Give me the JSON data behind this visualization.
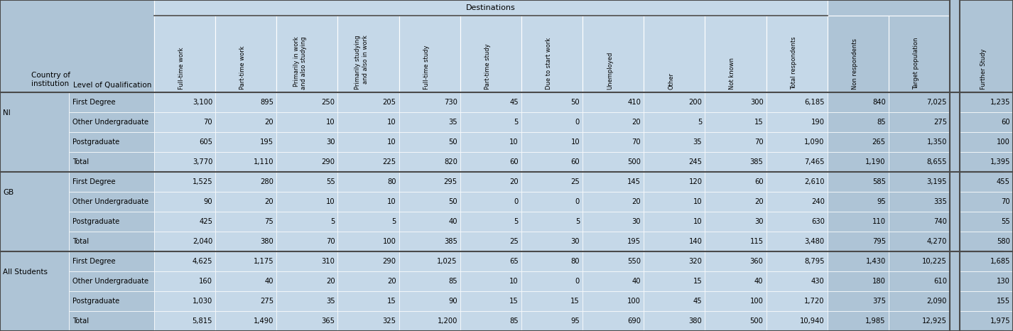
{
  "header_destinations": "Destinations",
  "col_headers": [
    "Full-time work",
    "Part-time work",
    "Primarily in work\nand also studying",
    "Primarily studying\nand also in work",
    "Full-time study",
    "Part-time study",
    "Due to start work",
    "Unemployed",
    "Other",
    "Not known",
    "Total respondents",
    "Non respondents",
    "Target population",
    "Further Study"
  ],
  "row_header1": "Country of\ninstitution",
  "row_header2": "Level of Qualification",
  "groups": [
    {
      "country": "NI",
      "rows": [
        {
          "level": "First Degree",
          "values": [
            3100,
            895,
            250,
            205,
            730,
            45,
            50,
            410,
            200,
            300,
            6185,
            840,
            7025,
            1235
          ]
        },
        {
          "level": "Other Undergraduate",
          "values": [
            70,
            20,
            10,
            10,
            35,
            5,
            0,
            20,
            5,
            15,
            190,
            85,
            275,
            60
          ]
        },
        {
          "level": "Postgraduate",
          "values": [
            605,
            195,
            30,
            10,
            50,
            10,
            10,
            70,
            35,
            70,
            1090,
            265,
            1350,
            100
          ]
        },
        {
          "level": "Total",
          "values": [
            3770,
            1110,
            290,
            225,
            820,
            60,
            60,
            500,
            245,
            385,
            7465,
            1190,
            8655,
            1395
          ]
        }
      ]
    },
    {
      "country": "GB",
      "rows": [
        {
          "level": "First Degree",
          "values": [
            1525,
            280,
            55,
            80,
            295,
            20,
            25,
            145,
            120,
            60,
            2610,
            585,
            3195,
            455
          ]
        },
        {
          "level": "Other Undergraduate",
          "values": [
            90,
            20,
            10,
            10,
            50,
            0,
            0,
            20,
            10,
            20,
            240,
            95,
            335,
            70
          ]
        },
        {
          "level": "Postgraduate",
          "values": [
            425,
            75,
            5,
            5,
            40,
            5,
            5,
            30,
            10,
            30,
            630,
            110,
            740,
            55
          ]
        },
        {
          "level": "Total",
          "values": [
            2040,
            380,
            70,
            100,
            385,
            25,
            30,
            195,
            140,
            115,
            3480,
            795,
            4270,
            580
          ]
        }
      ]
    },
    {
      "country": "All Students",
      "rows": [
        {
          "level": "First Degree",
          "values": [
            4625,
            1175,
            310,
            290,
            1025,
            65,
            80,
            550,
            320,
            360,
            8795,
            1430,
            10225,
            1685
          ]
        },
        {
          "level": "Other Undergraduate",
          "values": [
            160,
            40,
            20,
            20,
            85,
            10,
            0,
            40,
            15,
            40,
            430,
            180,
            610,
            130
          ]
        },
        {
          "level": "Postgraduate",
          "values": [
            1030,
            275,
            35,
            15,
            90,
            15,
            15,
            100,
            45,
            100,
            1720,
            375,
            2090,
            155
          ]
        },
        {
          "level": "Total",
          "values": [
            5815,
            1490,
            365,
            325,
            1200,
            85,
            95,
            690,
            380,
            500,
            10940,
            1985,
            12925,
            1975
          ]
        }
      ]
    }
  ],
  "bg_color": "#aec4d6",
  "dest_header_bg": "#c5d8e8",
  "border_light": "#ffffff",
  "border_dark": "#4a4a4a",
  "dest_cols": 11,
  "nondest_cols": 2,
  "further_cols": 1
}
